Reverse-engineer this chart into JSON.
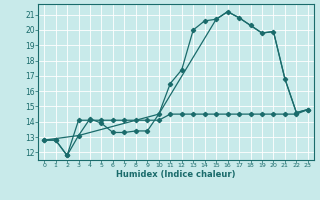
{
  "xlabel": "Humidex (Indice chaleur)",
  "background_color": "#c8eaea",
  "grid_color": "#ffffff",
  "line_color": "#1a6b6b",
  "xlim": [
    -0.5,
    23.5
  ],
  "ylim": [
    11.5,
    21.7
  ],
  "xticks": [
    0,
    1,
    2,
    3,
    4,
    5,
    6,
    7,
    8,
    9,
    10,
    11,
    12,
    13,
    14,
    15,
    16,
    17,
    18,
    19,
    20,
    21,
    22,
    23
  ],
  "yticks": [
    12,
    13,
    14,
    15,
    16,
    17,
    18,
    19,
    20,
    21
  ],
  "line1_x": [
    0,
    1,
    2,
    3,
    4,
    5,
    6,
    7,
    8,
    9,
    10,
    11,
    12,
    13,
    14,
    15,
    16,
    17,
    18,
    19,
    20,
    21,
    22,
    23
  ],
  "line1_y": [
    12.8,
    12.8,
    11.8,
    13.1,
    14.2,
    13.9,
    13.3,
    13.3,
    13.4,
    13.4,
    14.5,
    16.5,
    17.4,
    20.0,
    20.6,
    20.7,
    21.2,
    20.8,
    20.3,
    19.8,
    19.9,
    16.8,
    14.6,
    14.8
  ],
  "line2_x": [
    0,
    1,
    2,
    3,
    4,
    5,
    6,
    7,
    8,
    9,
    10,
    11,
    12,
    13,
    14,
    15,
    16,
    17,
    18,
    19,
    20,
    21,
    22,
    23
  ],
  "line2_y": [
    12.8,
    12.8,
    11.8,
    14.1,
    14.1,
    14.1,
    14.1,
    14.1,
    14.1,
    14.1,
    14.1,
    14.5,
    14.5,
    14.5,
    14.5,
    14.5,
    14.5,
    14.5,
    14.5,
    14.5,
    14.5,
    14.5,
    14.5,
    14.8
  ],
  "line3_x": [
    0,
    3,
    10,
    15,
    16,
    17,
    18,
    19,
    20,
    21,
    22,
    23
  ],
  "line3_y": [
    12.8,
    13.1,
    14.5,
    20.7,
    21.2,
    20.8,
    20.3,
    19.8,
    19.9,
    16.8,
    14.6,
    14.8
  ]
}
